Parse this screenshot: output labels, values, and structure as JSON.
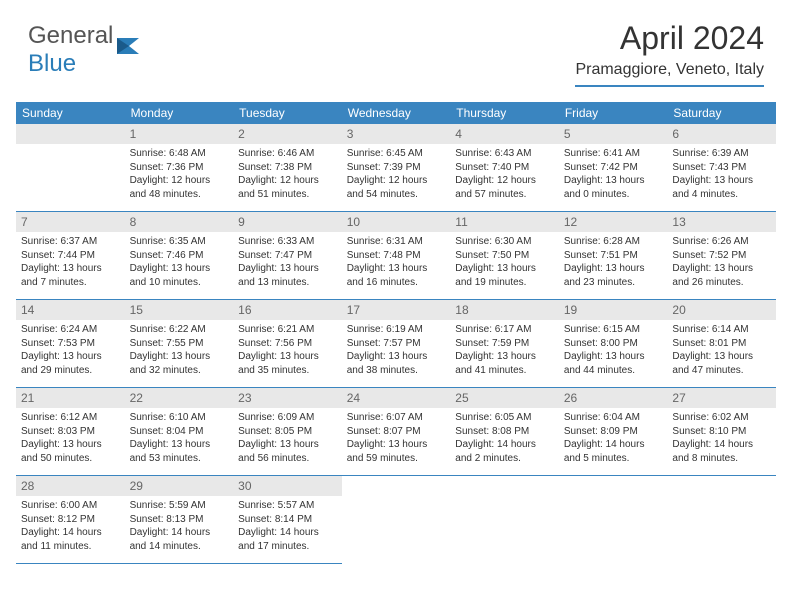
{
  "logo": {
    "part1": "General",
    "part2": "Blue"
  },
  "title": "April 2024",
  "location": "Pramaggiore, Veneto, Italy",
  "dayHeaders": [
    "Sunday",
    "Monday",
    "Tuesday",
    "Wednesday",
    "Thursday",
    "Friday",
    "Saturday"
  ],
  "colors": {
    "headerBg": "#3a85c0",
    "headerText": "#ffffff",
    "daynumBg": "#e8e8e8",
    "borderColor": "#3a85c0",
    "logoGray": "#555555",
    "logoBlue": "#2a7db8"
  },
  "firstDayOffset": 1,
  "days": [
    {
      "n": 1,
      "sr": "6:48 AM",
      "ss": "7:36 PM",
      "dl": "12 hours and 48 minutes."
    },
    {
      "n": 2,
      "sr": "6:46 AM",
      "ss": "7:38 PM",
      "dl": "12 hours and 51 minutes."
    },
    {
      "n": 3,
      "sr": "6:45 AM",
      "ss": "7:39 PM",
      "dl": "12 hours and 54 minutes."
    },
    {
      "n": 4,
      "sr": "6:43 AM",
      "ss": "7:40 PM",
      "dl": "12 hours and 57 minutes."
    },
    {
      "n": 5,
      "sr": "6:41 AM",
      "ss": "7:42 PM",
      "dl": "13 hours and 0 minutes."
    },
    {
      "n": 6,
      "sr": "6:39 AM",
      "ss": "7:43 PM",
      "dl": "13 hours and 4 minutes."
    },
    {
      "n": 7,
      "sr": "6:37 AM",
      "ss": "7:44 PM",
      "dl": "13 hours and 7 minutes."
    },
    {
      "n": 8,
      "sr": "6:35 AM",
      "ss": "7:46 PM",
      "dl": "13 hours and 10 minutes."
    },
    {
      "n": 9,
      "sr": "6:33 AM",
      "ss": "7:47 PM",
      "dl": "13 hours and 13 minutes."
    },
    {
      "n": 10,
      "sr": "6:31 AM",
      "ss": "7:48 PM",
      "dl": "13 hours and 16 minutes."
    },
    {
      "n": 11,
      "sr": "6:30 AM",
      "ss": "7:50 PM",
      "dl": "13 hours and 19 minutes."
    },
    {
      "n": 12,
      "sr": "6:28 AM",
      "ss": "7:51 PM",
      "dl": "13 hours and 23 minutes."
    },
    {
      "n": 13,
      "sr": "6:26 AM",
      "ss": "7:52 PM",
      "dl": "13 hours and 26 minutes."
    },
    {
      "n": 14,
      "sr": "6:24 AM",
      "ss": "7:53 PM",
      "dl": "13 hours and 29 minutes."
    },
    {
      "n": 15,
      "sr": "6:22 AM",
      "ss": "7:55 PM",
      "dl": "13 hours and 32 minutes."
    },
    {
      "n": 16,
      "sr": "6:21 AM",
      "ss": "7:56 PM",
      "dl": "13 hours and 35 minutes."
    },
    {
      "n": 17,
      "sr": "6:19 AM",
      "ss": "7:57 PM",
      "dl": "13 hours and 38 minutes."
    },
    {
      "n": 18,
      "sr": "6:17 AM",
      "ss": "7:59 PM",
      "dl": "13 hours and 41 minutes."
    },
    {
      "n": 19,
      "sr": "6:15 AM",
      "ss": "8:00 PM",
      "dl": "13 hours and 44 minutes."
    },
    {
      "n": 20,
      "sr": "6:14 AM",
      "ss": "8:01 PM",
      "dl": "13 hours and 47 minutes."
    },
    {
      "n": 21,
      "sr": "6:12 AM",
      "ss": "8:03 PM",
      "dl": "13 hours and 50 minutes."
    },
    {
      "n": 22,
      "sr": "6:10 AM",
      "ss": "8:04 PM",
      "dl": "13 hours and 53 minutes."
    },
    {
      "n": 23,
      "sr": "6:09 AM",
      "ss": "8:05 PM",
      "dl": "13 hours and 56 minutes."
    },
    {
      "n": 24,
      "sr": "6:07 AM",
      "ss": "8:07 PM",
      "dl": "13 hours and 59 minutes."
    },
    {
      "n": 25,
      "sr": "6:05 AM",
      "ss": "8:08 PM",
      "dl": "14 hours and 2 minutes."
    },
    {
      "n": 26,
      "sr": "6:04 AM",
      "ss": "8:09 PM",
      "dl": "14 hours and 5 minutes."
    },
    {
      "n": 27,
      "sr": "6:02 AM",
      "ss": "8:10 PM",
      "dl": "14 hours and 8 minutes."
    },
    {
      "n": 28,
      "sr": "6:00 AM",
      "ss": "8:12 PM",
      "dl": "14 hours and 11 minutes."
    },
    {
      "n": 29,
      "sr": "5:59 AM",
      "ss": "8:13 PM",
      "dl": "14 hours and 14 minutes."
    },
    {
      "n": 30,
      "sr": "5:57 AM",
      "ss": "8:14 PM",
      "dl": "14 hours and 17 minutes."
    }
  ],
  "labels": {
    "sunrise": "Sunrise:",
    "sunset": "Sunset:",
    "daylight": "Daylight:"
  }
}
